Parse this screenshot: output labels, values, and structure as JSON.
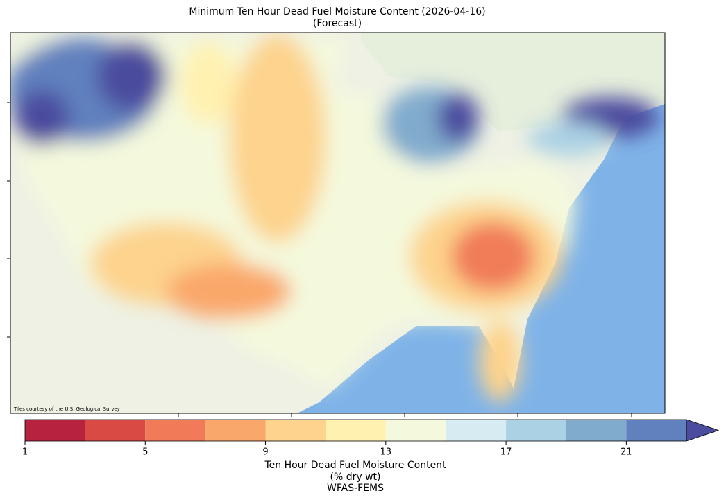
{
  "chart_data": {
    "type": "colorbar",
    "title": [
      "Minimum Ten Hour Dead Fuel Moisture Content (2026-04-16)",
      "(Forecast)"
    ],
    "label": [
      "Ten Hour Dead Fuel Moisture Content",
      "(% dry wt)",
      "WFAS-FEMS"
    ],
    "levels": [
      1,
      3,
      5,
      7,
      9,
      11,
      13,
      15,
      17,
      19,
      21,
      23
    ],
    "colors": [
      "#b7233f",
      "#da4a45",
      "#f17b59",
      "#faa76b",
      "#fdd38d",
      "#fff1b0",
      "#f4f9dd",
      "#d6ecf2",
      "#abd1e4",
      "#81abcd",
      "#6080be"
    ],
    "extend_color": "#4c4c9e",
    "xlim": [
      1,
      23
    ],
    "xticks": [
      1,
      5,
      9,
      13,
      17,
      21
    ]
  },
  "map": {
    "attribution": "Tiles courtesy of the U.S. Geological Survey"
  }
}
